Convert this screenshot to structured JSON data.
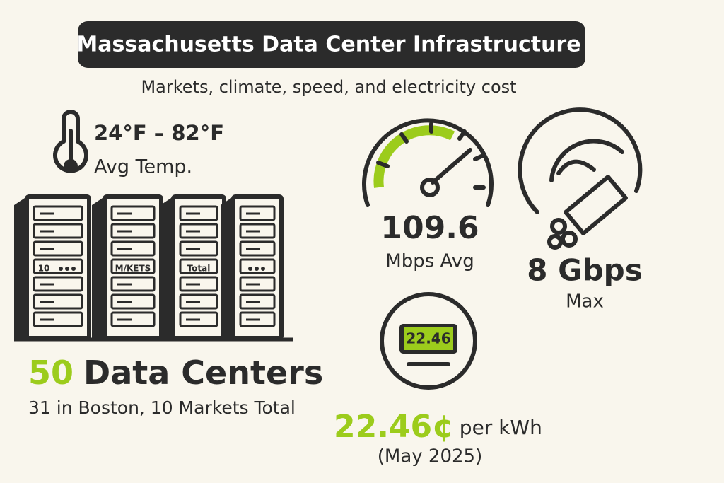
{
  "header": {
    "title": "Massachusetts Data Center Infrastructure",
    "subtitle": "Markets, climate, speed, and electricity cost"
  },
  "temperature": {
    "range": "24°F – 82°F",
    "label": "Avg Temp."
  },
  "servers": {
    "rack_labels": [
      "10",
      "M/KETS",
      "Total"
    ],
    "count": "50",
    "label": "Data Centers",
    "detail": "31 in Boston, 10 Markets Total"
  },
  "speed": {
    "value": "109.6",
    "label": "Mbps Avg"
  },
  "max_speed": {
    "value": "8 Gbps",
    "label": "Max"
  },
  "electricity": {
    "meter_display": "22.46",
    "price": "22.46¢",
    "unit": "per kWh",
    "date": "(May 2025)"
  }
}
